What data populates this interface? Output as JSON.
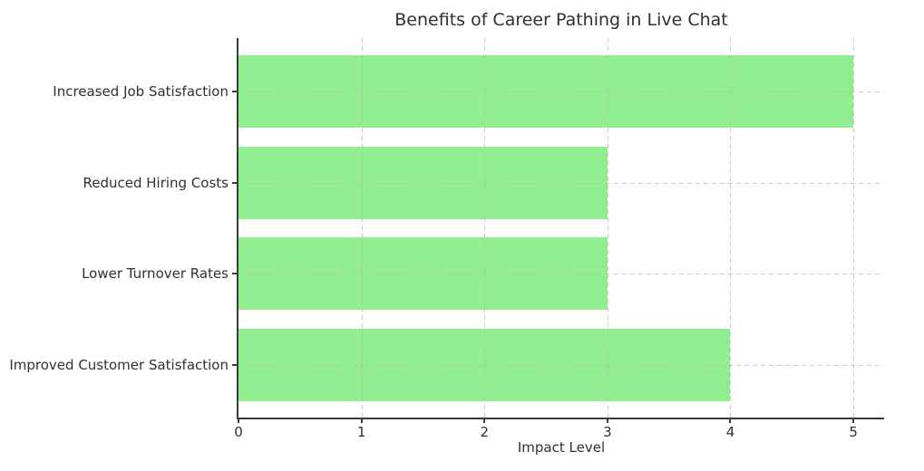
{
  "chart_data": {
    "type": "bar",
    "orientation": "horizontal",
    "title": "Benefits of Career Pathing in Live Chat",
    "xlabel": "Impact Level",
    "ylabel": "",
    "categories": [
      "Increased Job Satisfaction",
      "Reduced Hiring Costs",
      "Lower Turnover Rates",
      "Improved Customer Satisfaction"
    ],
    "values": [
      5,
      3,
      3,
      4
    ],
    "xticks": [
      "0",
      "1",
      "2",
      "3",
      "4",
      "5"
    ],
    "xtick_values": [
      0,
      1,
      2,
      3,
      4,
      5
    ],
    "xlim": [
      0,
      5.25
    ],
    "bar_relative_height": 0.8,
    "grid": "both",
    "grid_linestyle": "dashed",
    "legend": "none"
  },
  "colors": {
    "bar": "#90EE90",
    "background": "#ffffff",
    "grid": "#b9b9b9",
    "spine": "#3b3b3b",
    "text": "#303030"
  }
}
